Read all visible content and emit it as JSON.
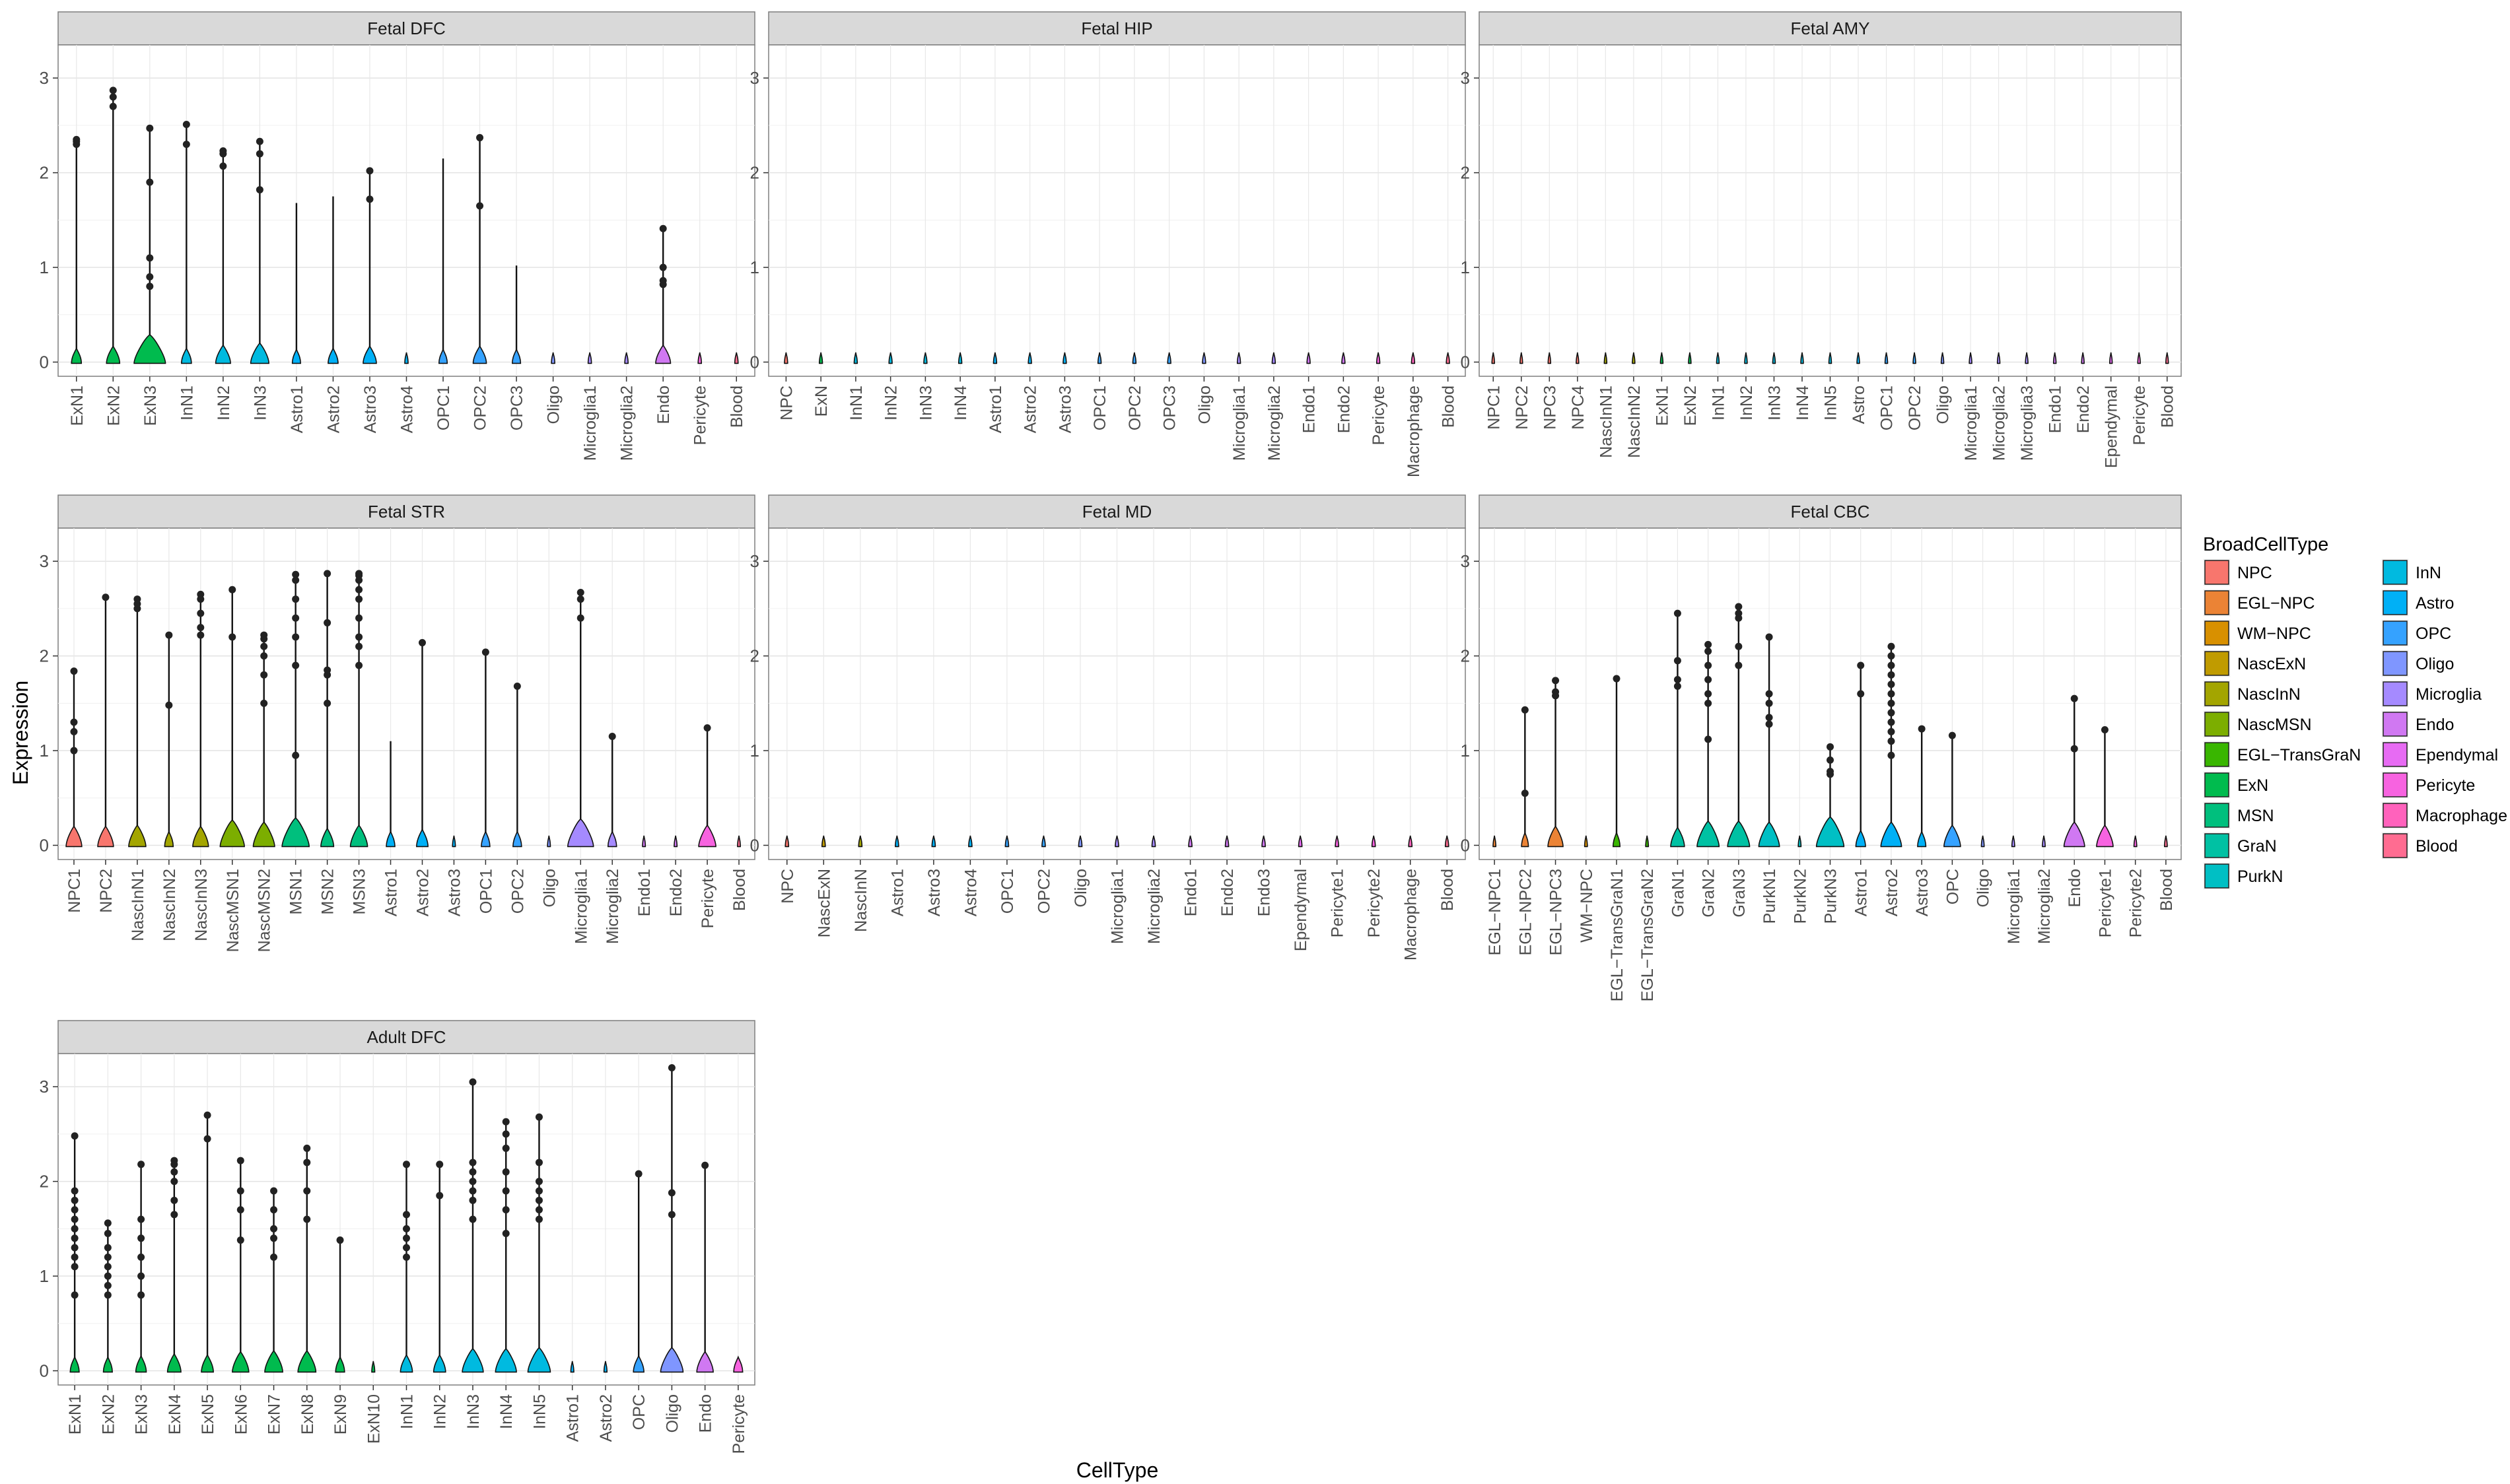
{
  "chart_data": {
    "type": "violin",
    "xlabel": "CellType",
    "ylabel": "Expression",
    "ylim": [
      -0.15,
      3.35
    ],
    "yticks": [
      0,
      1,
      2,
      3
    ],
    "grid": true,
    "legend_placement": "right",
    "legend": {
      "title": "BroadCellType",
      "entries": [
        {
          "name": "NPC",
          "color": "#F8766D"
        },
        {
          "name": "EGL−NPC",
          "color": "#EB8335"
        },
        {
          "name": "WM−NPC",
          "color": "#D89000"
        },
        {
          "name": "NascExN",
          "color": "#C09B00"
        },
        {
          "name": "NascInN",
          "color": "#A3A500"
        },
        {
          "name": "NascMSN",
          "color": "#7CAE00"
        },
        {
          "name": "EGL−TransGraN",
          "color": "#39B600"
        },
        {
          "name": "ExN",
          "color": "#00BB4E"
        },
        {
          "name": "MSN",
          "color": "#00BF7D"
        },
        {
          "name": "GraN",
          "color": "#00C1A3"
        },
        {
          "name": "PurkN",
          "color": "#00BFC4"
        },
        {
          "name": "InN",
          "color": "#00BAE0"
        },
        {
          "name": "Astro",
          "color": "#00B0F6"
        },
        {
          "name": "OPC",
          "color": "#35A2FF"
        },
        {
          "name": "Oligo",
          "color": "#7F96FF"
        },
        {
          "name": "Microglia",
          "color": "#A58AFF"
        },
        {
          "name": "Endo",
          "color": "#D078F2"
        },
        {
          "name": "Ependymal",
          "color": "#E76BF3"
        },
        {
          "name": "Pericyte",
          "color": "#F763E0"
        },
        {
          "name": "Macrophage",
          "color": "#FF62BC"
        },
        {
          "name": "Blood",
          "color": "#FF6C91"
        }
      ]
    },
    "panels": [
      {
        "title": "Fetal DFC",
        "categories": [
          "ExN1",
          "ExN2",
          "ExN3",
          "InN1",
          "InN2",
          "InN3",
          "Astro1",
          "Astro2",
          "Astro3",
          "Astro4",
          "OPC1",
          "OPC2",
          "OPC3",
          "Oligo",
          "Microglia1",
          "Microglia2",
          "Endo",
          "Pericyte",
          "Blood"
        ],
        "broad": [
          "ExN",
          "ExN",
          "ExN",
          "InN",
          "InN",
          "InN",
          "Astro",
          "Astro",
          "Astro",
          "Astro",
          "OPC",
          "OPC",
          "OPC",
          "Oligo",
          "Microglia",
          "Microglia",
          "Endo",
          "Pericyte",
          "Blood"
        ],
        "max": [
          2.33,
          2.87,
          2.47,
          2.51,
          2.23,
          2.33,
          1.68,
          1.75,
          2.02,
          0,
          2.15,
          2.37,
          1.02,
          0,
          0,
          0,
          1.41,
          0,
          0
        ],
        "width": [
          0.3,
          0.4,
          0.95,
          0.3,
          0.45,
          0.55,
          0.25,
          0.3,
          0.4,
          0.1,
          0.25,
          0.4,
          0.25,
          0.1,
          0.1,
          0.1,
          0.45,
          0.1,
          0.1
        ],
        "outliers": [
          [
            2.3,
            2.33,
            2.35
          ],
          [
            2.7,
            2.8,
            2.87
          ],
          [
            2.47,
            1.9,
            1.1,
            0.9,
            0.8
          ],
          [
            2.51,
            2.3
          ],
          [
            2.23,
            2.2,
            2.07
          ],
          [
            2.33,
            2.2,
            1.82
          ],
          [],
          [],
          [
            2.02,
            1.72
          ],
          [],
          [],
          [
            2.37,
            1.65
          ],
          [],
          [],
          [],
          [],
          [
            1.41,
            1.0,
            0.86,
            0.82
          ],
          [],
          []
        ]
      },
      {
        "title": "Fetal HIP",
        "categories": [
          "NPC",
          "ExN",
          "InN1",
          "InN2",
          "InN3",
          "InN4",
          "Astro1",
          "Astro2",
          "Astro3",
          "OPC1",
          "OPC2",
          "OPC3",
          "Oligo",
          "Microglia1",
          "Microglia2",
          "Endo1",
          "Endo2",
          "Pericyte",
          "Macrophage",
          "Blood"
        ],
        "broad": [
          "NPC",
          "ExN",
          "InN",
          "InN",
          "InN",
          "InN",
          "Astro",
          "Astro",
          "Astro",
          "OPC",
          "OPC",
          "OPC",
          "Oligo",
          "Microglia",
          "Microglia",
          "Endo",
          "Endo",
          "Pericyte",
          "Macrophage",
          "Blood"
        ],
        "max": [
          0,
          0,
          0,
          0,
          0,
          0,
          0,
          0,
          0,
          0,
          0,
          0,
          0,
          0,
          0,
          0,
          0,
          0,
          0,
          0
        ],
        "width": [
          0.1,
          0.1,
          0.1,
          0.1,
          0.1,
          0.1,
          0.1,
          0.1,
          0.1,
          0.1,
          0.1,
          0.1,
          0.1,
          0.1,
          0.1,
          0.1,
          0.1,
          0.1,
          0.1,
          0.1
        ],
        "outliers": [
          [],
          [],
          [],
          [],
          [],
          [],
          [],
          [],
          [],
          [],
          [],
          [],
          [],
          [],
          [],
          [],
          [],
          [],
          [],
          []
        ]
      },
      {
        "title": "Fetal AMY",
        "categories": [
          "NPC1",
          "NPC2",
          "NPC3",
          "NPC4",
          "NascInN1",
          "NascInN2",
          "ExN1",
          "ExN2",
          "InN1",
          "InN2",
          "InN3",
          "InN4",
          "InN5",
          "Astro",
          "OPC1",
          "OPC2",
          "Oligo",
          "Microglia1",
          "Microglia2",
          "Microglia3",
          "Endo1",
          "Endo2",
          "Ependymal",
          "Pericyte",
          "Blood"
        ],
        "broad": [
          "NPC",
          "NPC",
          "NPC",
          "NPC",
          "NascInN",
          "NascInN",
          "ExN",
          "ExN",
          "InN",
          "InN",
          "InN",
          "InN",
          "InN",
          "Astro",
          "OPC",
          "OPC",
          "Oligo",
          "Microglia",
          "Microglia",
          "Microglia",
          "Endo",
          "Endo",
          "Ependymal",
          "Pericyte",
          "Blood"
        ],
        "max": [
          0,
          0,
          0,
          0,
          0,
          0,
          0,
          0,
          0,
          0,
          0,
          0,
          0,
          0,
          0,
          0,
          0,
          0,
          0,
          0,
          0,
          0,
          0,
          0,
          0
        ],
        "width": [
          0.1,
          0.1,
          0.1,
          0.1,
          0.1,
          0.1,
          0.1,
          0.1,
          0.1,
          0.1,
          0.1,
          0.1,
          0.1,
          0.1,
          0.1,
          0.1,
          0.1,
          0.1,
          0.1,
          0.1,
          0.1,
          0.1,
          0.1,
          0.1,
          0.1
        ],
        "outliers": [
          [],
          [],
          [],
          [],
          [],
          [],
          [],
          [],
          [],
          [],
          [],
          [],
          [],
          [],
          [],
          [],
          [],
          [],
          [],
          [],
          [],
          [],
          [],
          [],
          []
        ]
      },
      {
        "title": "Fetal STR",
        "categories": [
          "NPC1",
          "NPC2",
          "NascInN1",
          "NascInN2",
          "NascInN3",
          "NascMSN1",
          "NascMSN2",
          "MSN1",
          "MSN2",
          "MSN3",
          "Astro1",
          "Astro2",
          "Astro3",
          "OPC1",
          "OPC2",
          "Oligo",
          "Microglia1",
          "Microglia2",
          "Endo1",
          "Endo2",
          "Pericyte",
          "Blood"
        ],
        "broad": [
          "NPC",
          "NPC",
          "NascInN",
          "NascInN",
          "NascInN",
          "NascMSN",
          "NascMSN",
          "MSN",
          "MSN",
          "MSN",
          "Astro",
          "Astro",
          "Astro",
          "OPC",
          "OPC",
          "Oligo",
          "Microglia",
          "Microglia",
          "Endo",
          "Endo",
          "Pericyte",
          "Blood"
        ],
        "max": [
          1.84,
          2.62,
          2.6,
          2.22,
          2.65,
          2.7,
          2.22,
          2.86,
          2.87,
          2.87,
          1.1,
          2.14,
          0,
          2.04,
          1.68,
          0,
          2.67,
          1.15,
          0,
          0,
          1.24,
          0
        ],
        "width": [
          0.55,
          0.55,
          0.6,
          0.3,
          0.55,
          0.85,
          0.75,
          0.95,
          0.45,
          0.6,
          0.3,
          0.4,
          0.1,
          0.3,
          0.3,
          0.1,
          0.9,
          0.3,
          0.1,
          0.1,
          0.6,
          0.1
        ],
        "outliers": [
          [
            1.84,
            1.3,
            1.2,
            1.0
          ],
          [
            2.62
          ],
          [
            2.6,
            2.55,
            2.5
          ],
          [
            2.22,
            1.48
          ],
          [
            2.65,
            2.6,
            2.45,
            2.3,
            2.22
          ],
          [
            2.7,
            2.2
          ],
          [
            2.22,
            2.18,
            2.1,
            2.0,
            1.8,
            1.5
          ],
          [
            2.86,
            2.8,
            2.6,
            2.4,
            2.2,
            1.9,
            0.95
          ],
          [
            2.87,
            2.35,
            1.85,
            1.8,
            1.5
          ],
          [
            2.87,
            2.85,
            2.8,
            2.7,
            2.6,
            2.4,
            2.2,
            2.1,
            1.9
          ],
          [],
          [
            2.14
          ],
          [],
          [
            2.04
          ],
          [
            1.68
          ],
          [],
          [
            2.67,
            2.6,
            2.4
          ],
          [
            1.15
          ],
          [],
          [],
          [
            1.24
          ],
          []
        ]
      },
      {
        "title": "Fetal MD",
        "categories": [
          "NPC",
          "NascExN",
          "NascInN",
          "Astro1",
          "Astro3",
          "Astro4",
          "OPC1",
          "OPC2",
          "Oligo",
          "Microglia1",
          "Microglia2",
          "Endo1",
          "Endo2",
          "Endo3",
          "Ependymal",
          "Pericyte1",
          "Pericyte2",
          "Macrophage",
          "Blood"
        ],
        "broad": [
          "NPC",
          "NascExN",
          "NascInN",
          "Astro",
          "Astro",
          "Astro",
          "OPC",
          "OPC",
          "Oligo",
          "Microglia",
          "Microglia",
          "Endo",
          "Endo",
          "Endo",
          "Ependymal",
          "Pericyte",
          "Pericyte",
          "Macrophage",
          "Blood"
        ],
        "max": [
          0,
          0,
          0,
          0,
          0,
          0,
          0,
          0,
          0,
          0,
          0,
          0,
          0,
          0,
          0,
          0,
          0,
          0,
          0
        ],
        "width": [
          0.1,
          0.1,
          0.1,
          0.1,
          0.1,
          0.1,
          0.1,
          0.1,
          0.1,
          0.1,
          0.1,
          0.1,
          0.1,
          0.1,
          0.1,
          0.1,
          0.1,
          0.1,
          0.1
        ],
        "outliers": [
          [],
          [],
          [],
          [],
          [],
          [],
          [],
          [],
          [],
          [],
          [],
          [],
          [],
          [],
          [],
          [],
          [],
          [],
          []
        ]
      },
      {
        "title": "Fetal CBC",
        "categories": [
          "EGL−NPC1",
          "EGL−NPC2",
          "EGL−NPC3",
          "WM−NPC",
          "EGL−TransGraN1",
          "EGL−TransGraN2",
          "GraN1",
          "GraN2",
          "GraN3",
          "PurkN1",
          "PurkN2",
          "PurkN3",
          "Astro1",
          "Astro2",
          "Astro3",
          "OPC",
          "Oligo",
          "Microglia1",
          "Microglia2",
          "Endo",
          "Pericyte1",
          "Pericyte2",
          "Blood"
        ],
        "broad": [
          "EGL−NPC",
          "EGL−NPC",
          "EGL−NPC",
          "WM−NPC",
          "EGL−TransGraN",
          "EGL−TransGraN",
          "GraN",
          "GraN",
          "GraN",
          "PurkN",
          "PurkN",
          "PurkN",
          "Astro",
          "Astro",
          "Astro",
          "OPC",
          "Oligo",
          "Microglia",
          "Microglia",
          "Endo",
          "Pericyte",
          "Pericyte",
          "Blood"
        ],
        "max": [
          0,
          1.43,
          1.74,
          0,
          1.76,
          0,
          2.45,
          2.12,
          2.52,
          2.2,
          0,
          1.04,
          1.9,
          2.1,
          1.23,
          1.16,
          0,
          0,
          0,
          1.55,
          1.22,
          0,
          0
        ],
        "width": [
          0.1,
          0.25,
          0.55,
          0.1,
          0.25,
          0.1,
          0.5,
          0.8,
          0.8,
          0.75,
          0.1,
          1.0,
          0.35,
          0.75,
          0.3,
          0.6,
          0.1,
          0.1,
          0.1,
          0.75,
          0.6,
          0.1,
          0.1
        ],
        "outliers": [
          [],
          [
            1.43,
            0.55
          ],
          [
            1.74,
            1.62,
            1.58
          ],
          [],
          [
            1.76
          ],
          [],
          [
            2.45,
            1.95,
            1.75,
            1.68
          ],
          [
            2.12,
            2.05,
            1.9,
            1.75,
            1.6,
            1.5,
            1.12
          ],
          [
            2.52,
            2.45,
            2.4,
            2.1,
            1.9
          ],
          [
            2.2,
            1.6,
            1.5,
            1.35,
            1.28
          ],
          [],
          [
            1.04,
            0.9,
            0.78,
            0.75
          ],
          [
            1.9,
            1.6
          ],
          [
            2.1,
            2.0,
            1.9,
            1.8,
            1.7,
            1.6,
            1.5,
            1.4,
            1.3,
            1.2,
            1.1,
            0.95
          ],
          [
            1.23
          ],
          [
            1.16
          ],
          [],
          [],
          [],
          [
            1.55,
            1.02
          ],
          [
            1.22
          ],
          [],
          []
        ]
      },
      {
        "title": "Adult DFC",
        "categories": [
          "ExN1",
          "ExN2",
          "ExN3",
          "ExN4",
          "ExN5",
          "ExN6",
          "ExN7",
          "ExN8",
          "ExN9",
          "ExN10",
          "InN1",
          "InN2",
          "InN3",
          "InN4",
          "InN5",
          "Astro1",
          "Astro2",
          "OPC",
          "Oligo",
          "Endo",
          "Pericyte"
        ],
        "broad": [
          "ExN",
          "ExN",
          "ExN",
          "ExN",
          "ExN",
          "ExN",
          "ExN",
          "ExN",
          "ExN",
          "ExN",
          "InN",
          "InN",
          "InN",
          "InN",
          "InN",
          "Astro",
          "Astro",
          "OPC",
          "Oligo",
          "Endo",
          "Pericyte"
        ],
        "max": [
          2.48,
          1.56,
          2.18,
          2.22,
          2.7,
          2.22,
          1.9,
          2.35,
          1.38,
          0,
          2.18,
          2.18,
          3.05,
          2.63,
          2.68,
          0,
          0,
          2.08,
          3.2,
          2.17,
          0
        ],
        "width": [
          0.3,
          0.3,
          0.35,
          0.45,
          0.4,
          0.55,
          0.6,
          0.6,
          0.3,
          0.1,
          0.4,
          0.4,
          0.7,
          0.7,
          0.75,
          0.1,
          0.1,
          0.35,
          0.75,
          0.55,
          0.3
        ],
        "outliers": [
          [
            2.48,
            1.9,
            1.8,
            1.7,
            1.6,
            1.5,
            1.4,
            1.3,
            1.2,
            1.1,
            0.8
          ],
          [
            1.56,
            1.45,
            1.3,
            1.2,
            1.1,
            1.0,
            0.9,
            0.8
          ],
          [
            2.18,
            1.6,
            1.4,
            1.2,
            1.0,
            0.8
          ],
          [
            2.22,
            2.18,
            2.1,
            2.0,
            1.8,
            1.65
          ],
          [
            2.7,
            2.45
          ],
          [
            2.22,
            1.9,
            1.7,
            1.38
          ],
          [
            1.9,
            1.7,
            1.5,
            1.4,
            1.2
          ],
          [
            2.35,
            2.2,
            1.9,
            1.6
          ],
          [
            1.38
          ],
          [],
          [
            2.18,
            1.65,
            1.5,
            1.4,
            1.3,
            1.2
          ],
          [
            2.18,
            1.85
          ],
          [
            3.05,
            2.2,
            2.1,
            2.0,
            1.9,
            1.8,
            1.6
          ],
          [
            2.63,
            2.5,
            2.35,
            2.1,
            1.9,
            1.7,
            1.45
          ],
          [
            2.68,
            2.2,
            2.0,
            1.9,
            1.8,
            1.7,
            1.6
          ],
          [],
          [],
          [
            2.08
          ],
          [
            3.2,
            1.88,
            1.65
          ],
          [
            2.17
          ],
          []
        ]
      }
    ]
  }
}
